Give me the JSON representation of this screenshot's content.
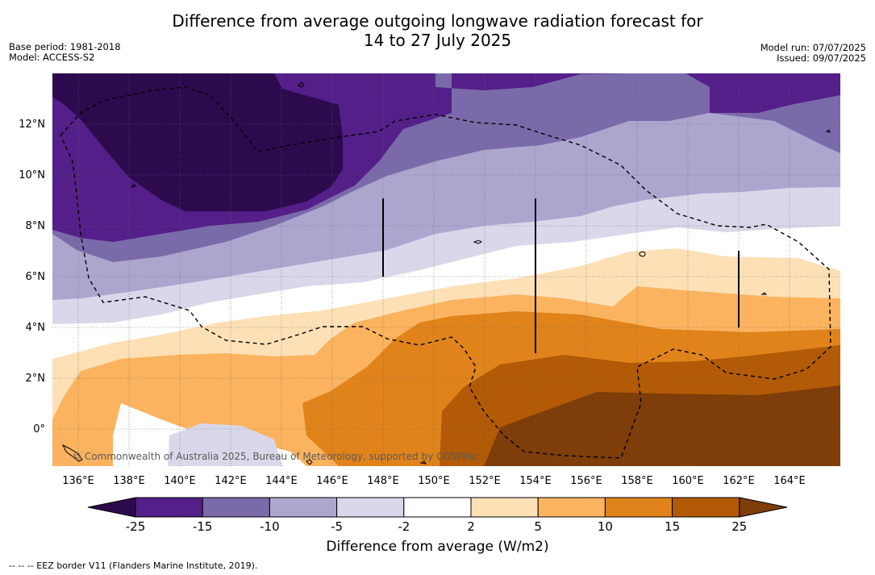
{
  "title_line1": "Difference from average outgoing longwave radiation forecast for",
  "title_line2": "14 to 27 July 2025",
  "base_period": "Base period: 1981-2018",
  "model": "Model: ACCESS-S2",
  "model_run": "Model run: 07/07/2025",
  "issued": "Issued: 09/07/2025",
  "x_ticks": [
    "136°E",
    "138°E",
    "140°E",
    "142°E",
    "144°E",
    "146°E",
    "148°E",
    "150°E",
    "152°E",
    "154°E",
    "156°E",
    "158°E",
    "160°E",
    "162°E",
    "164°E"
  ],
  "y_ticks": [
    "12°N",
    "10°N",
    "8°N",
    "6°N",
    "4°N",
    "2°N",
    "0°"
  ],
  "copyright": "© Commonwealth of Australia 2025, Bureau of Meteorology, supported by COSPPac",
  "colorbar": {
    "labels": [
      "-25",
      "-15",
      "-10",
      "-5",
      "-2",
      "2",
      "5",
      "10",
      "15",
      "25"
    ],
    "colors": [
      "#541f88",
      "#7b6aa9",
      "#aca6cf",
      "#d8d8ea",
      "#ffffff",
      "#fde0b6",
      "#fbb35f",
      "#e0831b",
      "#b25a06",
      "#7e3d09"
    ],
    "under_color": "#2d0a4e",
    "over_color": "#7e3d09",
    "title": "Difference from average (W/m2)"
  },
  "legend_footer": "--  --  -- EEZ border V11 (Flanders Marine Institute, 2019)."
}
